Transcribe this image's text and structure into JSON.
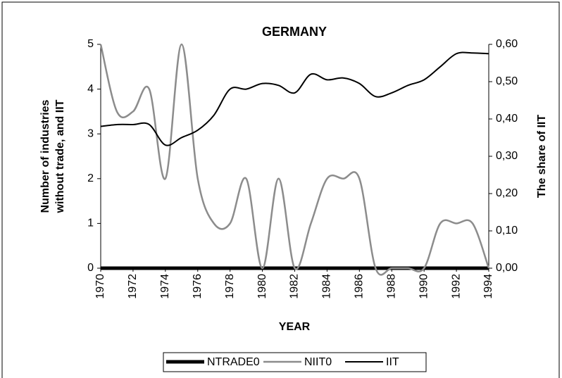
{
  "chart_data": {
    "type": "line",
    "title": "GERMANY",
    "xlabel": "YEAR",
    "ylabel": [
      "Number of industries",
      "without trade, and IIT"
    ],
    "y2label": "The share of IIT",
    "x": [
      1970,
      1971,
      1972,
      1973,
      1974,
      1975,
      1976,
      1977,
      1978,
      1979,
      1980,
      1981,
      1982,
      1983,
      1984,
      1985,
      1986,
      1987,
      1988,
      1989,
      1990,
      1991,
      1992,
      1993,
      1994
    ],
    "xlim": [
      1970,
      1994
    ],
    "xticks": [
      1970,
      1972,
      1974,
      1976,
      1978,
      1980,
      1982,
      1984,
      1986,
      1988,
      1990,
      1992,
      1994
    ],
    "ylim": [
      0,
      5
    ],
    "yticks": [
      0,
      1,
      2,
      3,
      4,
      5
    ],
    "y2lim": [
      0,
      0.6
    ],
    "y2ticks": [
      {
        "value": 0,
        "label": "0,00"
      },
      {
        "value": 0.1,
        "label": "0,10"
      },
      {
        "value": 0.2,
        "label": "0,20"
      },
      {
        "value": 0.3,
        "label": "0,30"
      },
      {
        "value": 0.4,
        "label": "0,40"
      },
      {
        "value": 0.5,
        "label": "0,50"
      },
      {
        "value": 0.6,
        "label": "0,60"
      }
    ],
    "series": [
      {
        "name": "NTRADE0",
        "color": "#000000",
        "values": [
          0,
          0,
          0,
          0,
          0,
          0,
          0,
          0,
          0,
          0,
          0,
          0,
          0,
          0,
          0,
          0,
          0,
          0,
          0,
          0,
          0,
          0,
          0,
          0,
          0
        ]
      },
      {
        "name": "NIIT0",
        "color": "#8c8c8c",
        "values": [
          5,
          3.5,
          3.5,
          4,
          2,
          5,
          2,
          1,
          1,
          2,
          0,
          2,
          0,
          1,
          2,
          2,
          2,
          0,
          0,
          0,
          0,
          1,
          1,
          1,
          0
        ]
      },
      {
        "name": "IIT",
        "color": "#000000",
        "axis": "y2",
        "values": [
          0.38,
          0.385,
          0.385,
          0.385,
          0.33,
          0.35,
          0.37,
          0.41,
          0.48,
          0.48,
          0.495,
          0.49,
          0.47,
          0.52,
          0.505,
          0.51,
          0.495,
          0.46,
          0.47,
          0.49,
          0.505,
          0.54,
          0.575,
          0.577,
          0.575
        ]
      }
    ]
  }
}
